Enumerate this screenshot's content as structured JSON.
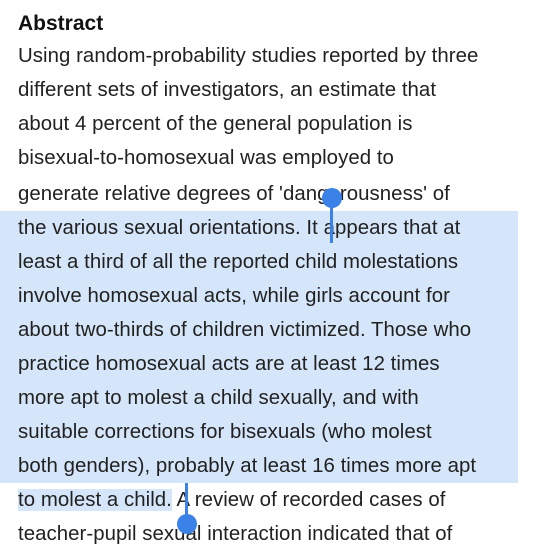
{
  "heading": "Abstract",
  "lines": [
    {
      "plain": "Using random-probability studies reported by three"
    },
    {
      "plain": "different sets of investigators, an estimate that"
    },
    {
      "plain": "about 4 percent of the general population is"
    },
    {
      "plain": "bisexual-to-homosexual was employed to"
    },
    {
      "plain": "generate relative degrees of 'dangerousness' of"
    },
    {
      "before": "the various sexual orientations. ",
      "selected": "It appears that at"
    },
    {
      "selected": "least a third of all the reported child molestations"
    },
    {
      "selected": "involve homosexual acts, while girls account for"
    },
    {
      "selected": "about two-thirds of children victimized. Those who"
    },
    {
      "selected": "practice homosexual acts are at least 12 times"
    },
    {
      "selected": "more apt to molest a child sexually, and with"
    },
    {
      "selected": "suitable corrections for bisexuals (who molest"
    },
    {
      "selected": "both genders), probably at least 16 times more apt"
    },
    {
      "selected": "to molest a child.",
      "after": " A review of recorded cases of"
    },
    {
      "plain": "teacher-pupil sexual interaction indicated that of"
    }
  ],
  "selection": {
    "color": "#d6e6fa",
    "handle_color": "#3b82e8",
    "start_handle": "selection-start-handle",
    "end_handle": "selection-end-handle"
  }
}
